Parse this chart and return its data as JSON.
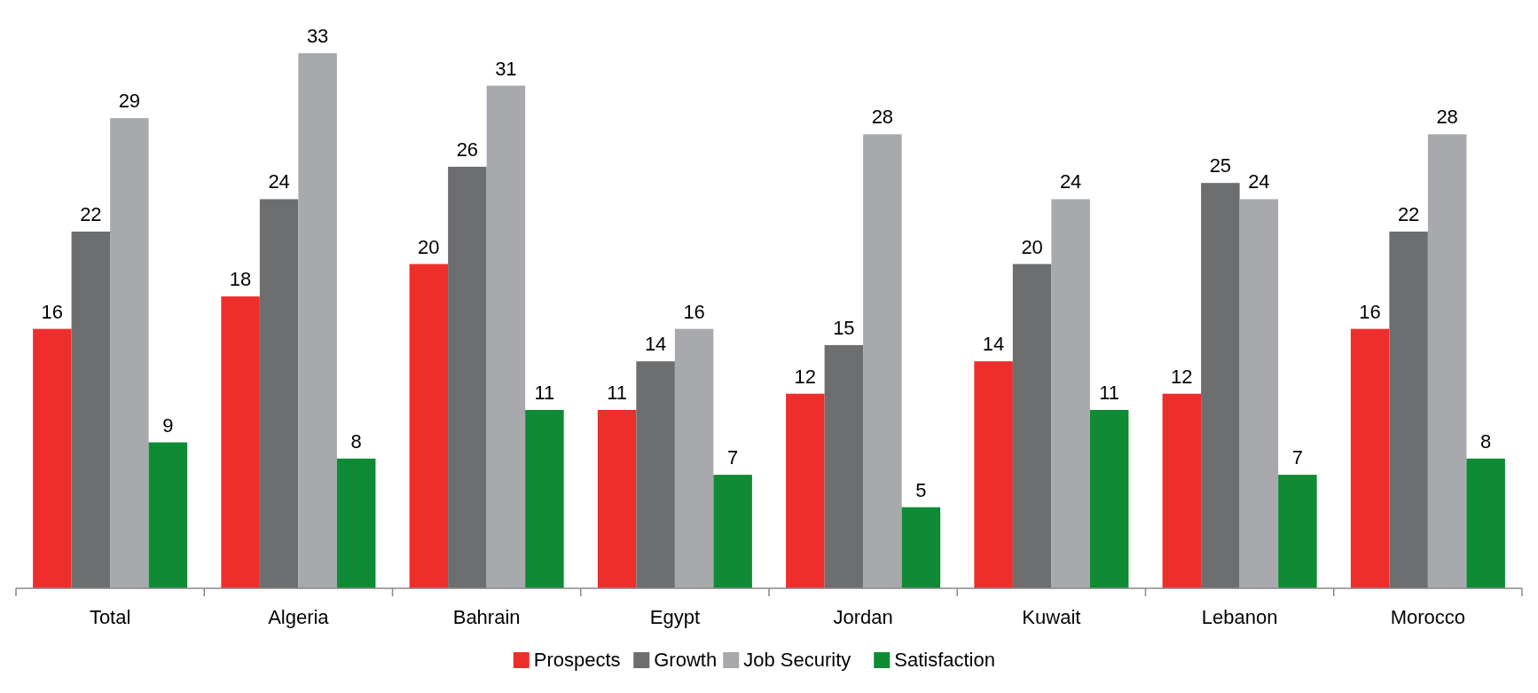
{
  "chart_data": {
    "type": "bar",
    "categories": [
      "Total",
      "Algeria",
      "Bahrain",
      "Egypt",
      "Jordan",
      "Kuwait",
      "Lebanon",
      "Morocco"
    ],
    "series": [
      {
        "name": "Prospects",
        "color": "#ee2e2b",
        "values": [
          16,
          18,
          20,
          11,
          12,
          14,
          12,
          16
        ]
      },
      {
        "name": "Growth",
        "color": "#6d6e70",
        "values": [
          22,
          24,
          26,
          14,
          15,
          20,
          25,
          22
        ]
      },
      {
        "name": "Job Security",
        "color": "#a7a9ac",
        "values": [
          29,
          33,
          31,
          16,
          28,
          24,
          24,
          28
        ]
      },
      {
        "name": "Satisfaction",
        "color": "#0f8a35",
        "values": [
          9,
          8,
          11,
          7,
          5,
          11,
          7,
          8
        ]
      }
    ],
    "data_labels": true,
    "legend": "bottom"
  }
}
